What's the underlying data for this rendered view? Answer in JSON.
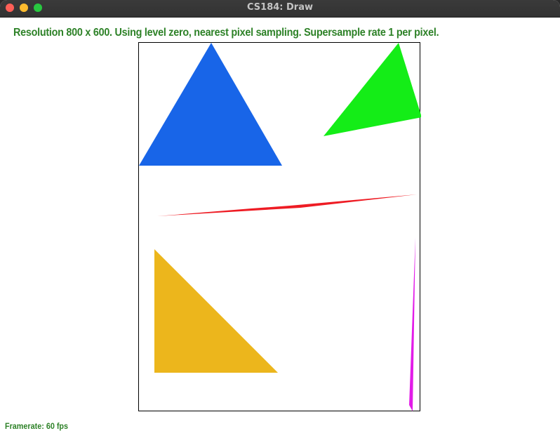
{
  "window": {
    "title": "CS184: Draw"
  },
  "status": {
    "message": "Resolution 800 x 600. Using level zero, nearest pixel sampling. Supersample rate 1 per pixel.",
    "framerate": "Framerate: 60 fps",
    "text_color": "#2e8228"
  },
  "shapes": [
    {
      "name": "blue-triangle",
      "color": "#1865e8"
    },
    {
      "name": "green-triangle",
      "color": "#14ed17"
    },
    {
      "name": "red-sliver",
      "color": "#ee1c24"
    },
    {
      "name": "yellow-triangle",
      "color": "#ecb61c"
    },
    {
      "name": "magenta-sliver",
      "color": "#e21ce8"
    }
  ]
}
